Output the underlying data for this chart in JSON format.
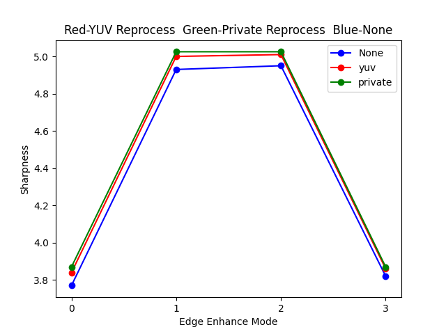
{
  "title": "Red-YUV Reprocess  Green-Private Reprocess  Blue-None",
  "xlabel": "Edge Enhance Mode",
  "ylabel": "Sharpness",
  "x": [
    0,
    1,
    2,
    3
  ],
  "series": [
    {
      "label": "None",
      "color": "blue",
      "marker": "o",
      "values": [
        3.77,
        4.93,
        4.95,
        3.82
      ]
    },
    {
      "label": "yuv",
      "color": "red",
      "marker": "o",
      "values": [
        3.84,
        5.0,
        5.01,
        3.86
      ]
    },
    {
      "label": "private",
      "color": "green",
      "marker": "o",
      "values": [
        3.87,
        5.025,
        5.025,
        3.87
      ]
    }
  ],
  "legend_loc": "upper right",
  "figsize": [
    6.4,
    4.8
  ],
  "dpi": 100
}
